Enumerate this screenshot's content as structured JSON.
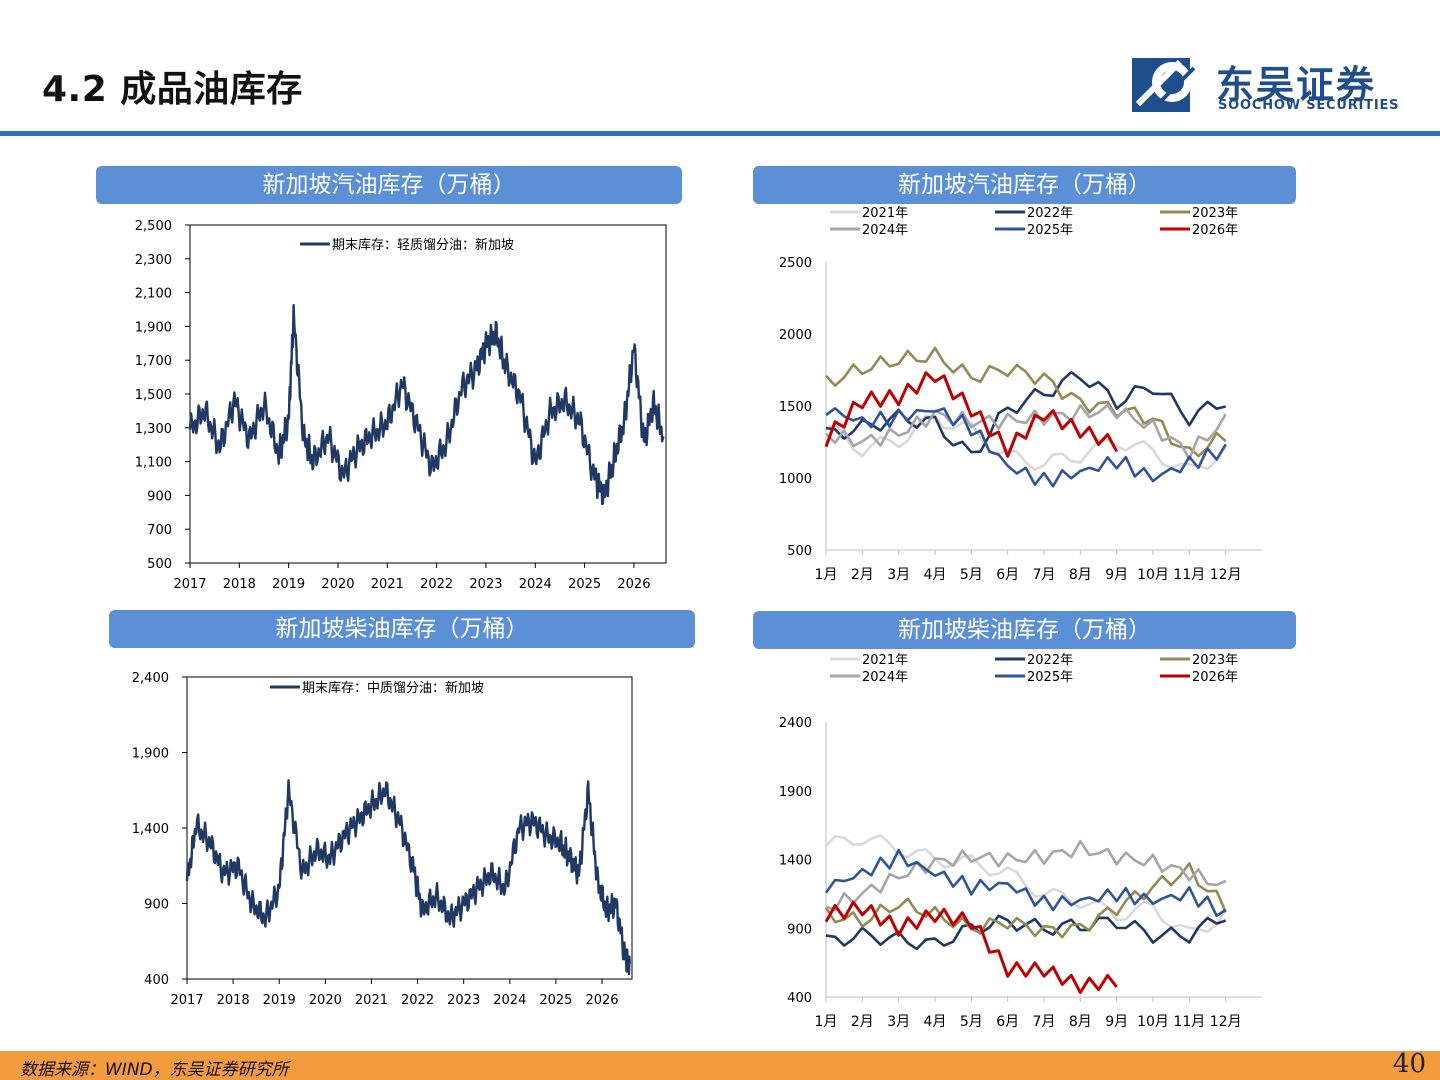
{
  "header": {
    "title": "4.2 成品油库存",
    "logo_cn": "东吴证券",
    "logo_en": "SOOCHOW SECURITIES"
  },
  "footer": {
    "source": "数据来源：WIND，东吴证券研究所",
    "page": "40"
  },
  "colors": {
    "accent_blue": "#2e75b6",
    "panel_blue": "#5b8fd6",
    "series_navy": "#1f3864",
    "footer_orange": "#f59b3f"
  },
  "panels": {
    "p1": "新加坡汽油库存（万桶）",
    "p2": "新加坡汽油库存（万桶）",
    "p3": "新加坡柴油库存（万桶）",
    "p4": "新加坡柴油库存（万桶）"
  },
  "chart_data": [
    {
      "id": "c1",
      "type": "line",
      "legend": [
        "期末库存：轻质馏分油：新加坡"
      ],
      "x_ticks": [
        "2017",
        "2018",
        "2019",
        "2020",
        "2021",
        "2022",
        "2023",
        "2024",
        "2025",
        "2026"
      ],
      "xlim": [
        2017.0,
        2026.65
      ],
      "ylim": [
        500,
        2500
      ],
      "y_ticks": [
        "500",
        "700",
        "900",
        "1,100",
        "1,300",
        "1,500",
        "1,700",
        "1,900",
        "2,100",
        "2,300",
        "2,500"
      ],
      "x": [
        2017.0,
        2017.3,
        2017.6,
        2017.9,
        2018.2,
        2018.5,
        2018.8,
        2019.0,
        2019.1,
        2019.3,
        2019.5,
        2019.8,
        2020.1,
        2020.4,
        2020.7,
        2021.0,
        2021.3,
        2021.6,
        2021.9,
        2022.2,
        2022.5,
        2022.8,
        2023.0,
        2023.2,
        2023.4,
        2023.7,
        2024.0,
        2024.3,
        2024.6,
        2024.9,
        2025.2,
        2025.4,
        2025.6,
        2025.8,
        2026.0,
        2026.2,
        2026.4,
        2026.6
      ],
      "values": [
        1290,
        1400,
        1180,
        1460,
        1230,
        1440,
        1140,
        1350,
        1960,
        1250,
        1100,
        1250,
        1020,
        1180,
        1260,
        1330,
        1560,
        1320,
        1060,
        1210,
        1530,
        1650,
        1790,
        1860,
        1660,
        1480,
        1090,
        1390,
        1460,
        1340,
        1010,
        900,
        1120,
        1330,
        1780,
        1220,
        1440,
        1250
      ],
      "y_label_precision": "whole"
    },
    {
      "id": "c2",
      "type": "line",
      "x_ticks": [
        "1月",
        "2月",
        "3月",
        "4月",
        "5月",
        "6月",
        "7月",
        "8月",
        "9月",
        "10月",
        "11月",
        "12月"
      ],
      "ylim": [
        500,
        2500
      ],
      "y_ticks": [
        "500",
        "1000",
        "1500",
        "2000",
        "2500"
      ],
      "series": [
        {
          "name": "2021年",
          "color": "#d9d9d9",
          "values": [
            1350,
            1200,
            1260,
            1420,
            1330,
            1150,
            1100,
            1160,
            1260,
            1180,
            1040,
            1190
          ]
        },
        {
          "name": "2022年",
          "color": "#1f3864",
          "values": [
            1300,
            1350,
            1420,
            1380,
            1150,
            1480,
            1590,
            1720,
            1530,
            1640,
            1420,
            1540
          ]
        },
        {
          "name": "2023年",
          "color": "#948a54",
          "values": [
            1660,
            1760,
            1820,
            1850,
            1700,
            1760,
            1690,
            1520,
            1480,
            1410,
            1160,
            1290
          ]
        },
        {
          "name": "2024年",
          "color": "#a6a6a6",
          "values": [
            1300,
            1250,
            1310,
            1440,
            1390,
            1400,
            1420,
            1450,
            1470,
            1350,
            1180,
            1400
          ]
        },
        {
          "name": "2025年",
          "color": "#2f5597",
          "values": [
            1480,
            1390,
            1420,
            1480,
            1350,
            1080,
            980,
            1040,
            1120,
            1000,
            1100,
            1200
          ]
        },
        {
          "name": "2026年",
          "color": "#c00000",
          "values": [
            1270,
            1540,
            1560,
            1720,
            1480,
            1200,
            1450,
            1330,
            1230,
            null,
            null,
            null
          ]
        }
      ]
    },
    {
      "id": "c3",
      "type": "line",
      "legend": [
        "期末库存：中质馏分油：新加坡"
      ],
      "x_ticks": [
        "2017",
        "2018",
        "2019",
        "2020",
        "2021",
        "2022",
        "2023",
        "2024",
        "2025",
        "2026"
      ],
      "xlim": [
        2017.0,
        2026.65
      ],
      "ylim": [
        400,
        2400
      ],
      "y_ticks": [
        "400",
        "900",
        "1,400",
        "1,900",
        "2,400"
      ],
      "x": [
        2017.0,
        2017.2,
        2017.5,
        2017.8,
        2018.1,
        2018.4,
        2018.7,
        2019.0,
        2019.2,
        2019.5,
        2019.8,
        2020.1,
        2020.4,
        2020.7,
        2021.0,
        2021.3,
        2021.6,
        2021.9,
        2022.1,
        2022.4,
        2022.7,
        2023.0,
        2023.3,
        2023.6,
        2023.9,
        2024.2,
        2024.5,
        2024.8,
        2025.1,
        2025.3,
        2025.5,
        2025.7,
        2025.9,
        2026.1,
        2026.3,
        2026.5,
        2026.6
      ],
      "values": [
        1050,
        1420,
        1300,
        1100,
        1150,
        900,
        800,
        1000,
        1650,
        1100,
        1250,
        1200,
        1350,
        1450,
        1550,
        1650,
        1450,
        1150,
        850,
        950,
        800,
        900,
        1000,
        1100,
        1000,
        1400,
        1450,
        1350,
        1300,
        1200,
        1100,
        1650,
        1050,
        850,
        900,
        550,
        500
      ]
    },
    {
      "id": "c4",
      "type": "line",
      "x_ticks": [
        "1月",
        "2月",
        "3月",
        "4月",
        "5月",
        "6月",
        "7月",
        "8月",
        "9月",
        "10月",
        "11月",
        "12月"
      ],
      "ylim": [
        400,
        2400
      ],
      "y_ticks": [
        "400",
        "900",
        "1400",
        "1900",
        "2400"
      ],
      "series": [
        {
          "name": "2021年",
          "color": "#d9d9d9",
          "values": [
            1500,
            1560,
            1480,
            1400,
            1380,
            1300,
            1150,
            1100,
            1000,
            1050,
            850,
            1000
          ]
        },
        {
          "name": "2022年",
          "color": "#1f3864",
          "values": [
            800,
            850,
            820,
            780,
            900,
            950,
            900,
            920,
            950,
            850,
            850,
            1000
          ]
        },
        {
          "name": "2023年",
          "color": "#948a54",
          "values": [
            1000,
            950,
            1080,
            1000,
            900,
            950,
            880,
            900,
            1050,
            1200,
            1320,
            1050
          ]
        },
        {
          "name": "2024年",
          "color": "#a6a6a6",
          "values": [
            1050,
            1150,
            1280,
            1380,
            1420,
            1400,
            1420,
            1480,
            1420,
            1380,
            1300,
            1200
          ]
        },
        {
          "name": "2025年",
          "color": "#2f5597",
          "values": [
            1200,
            1300,
            1420,
            1300,
            1200,
            1220,
            1080,
            1100,
            1150,
            1100,
            1150,
            1000
          ]
        },
        {
          "name": "2026年",
          "color": "#c00000",
          "values": [
            1000,
            1050,
            900,
            1000,
            950,
            600,
            600,
            480,
            520,
            null,
            null,
            null
          ]
        }
      ]
    }
  ]
}
